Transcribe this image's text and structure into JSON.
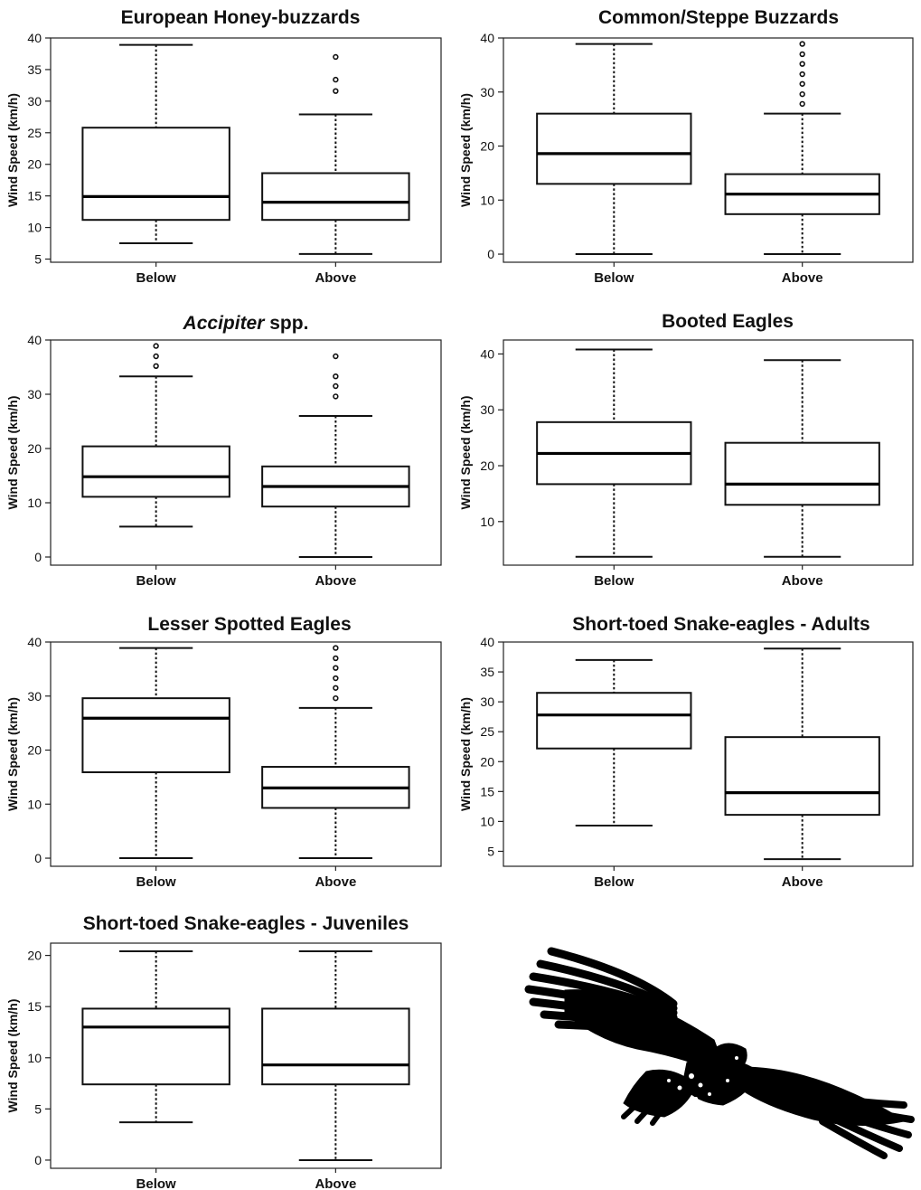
{
  "chart_data": [
    {
      "type": "box",
      "title": "European Honey-buzzards",
      "ylabel": "Wind Speed (km/h)",
      "categories": [
        "Below",
        "Above"
      ],
      "ylim": [
        4.5,
        40
      ],
      "yticks": [
        5,
        10,
        15,
        20,
        25,
        30,
        35,
        40
      ],
      "boxes": [
        {
          "category": "Below",
          "min": 7.5,
          "q1": 11.2,
          "median": 14.9,
          "q3": 25.8,
          "max": 38.9,
          "outliers": []
        },
        {
          "category": "Above",
          "min": 5.8,
          "q1": 11.2,
          "median": 14.0,
          "q3": 18.6,
          "max": 27.9,
          "outliers": [
            31.6,
            33.4,
            37.0
          ]
        }
      ]
    },
    {
      "type": "box",
      "title": "Common/Steppe Buzzards",
      "ylabel": "Wind Speed (km/h)",
      "categories": [
        "Below",
        "Above"
      ],
      "ylim": [
        -1.5,
        40
      ],
      "yticks": [
        0,
        10,
        20,
        30,
        40
      ],
      "boxes": [
        {
          "category": "Below",
          "min": 0,
          "q1": 13.0,
          "median": 18.6,
          "q3": 26.0,
          "max": 38.9,
          "outliers": []
        },
        {
          "category": "Above",
          "min": 0,
          "q1": 7.4,
          "median": 11.1,
          "q3": 14.8,
          "max": 26.0,
          "outliers": [
            27.8,
            29.6,
            31.5,
            33.3,
            35.2,
            37.0,
            38.9
          ]
        }
      ]
    },
    {
      "type": "box",
      "title_italic": "Accipiter",
      "title": " spp.",
      "ylabel": "Wind Speed (km/h)",
      "categories": [
        "Below",
        "Above"
      ],
      "ylim": [
        -1.5,
        40
      ],
      "yticks": [
        0,
        10,
        20,
        30,
        40
      ],
      "boxes": [
        {
          "category": "Below",
          "min": 5.6,
          "q1": 11.1,
          "median": 14.8,
          "q3": 20.4,
          "max": 33.3,
          "outliers": [
            35.2,
            37.0,
            38.9
          ]
        },
        {
          "category": "Above",
          "min": 0,
          "q1": 9.3,
          "median": 13.0,
          "q3": 16.7,
          "max": 26.0,
          "outliers": [
            29.6,
            31.5,
            33.3,
            37.0
          ]
        }
      ]
    },
    {
      "type": "box",
      "title": "Booted Eagles",
      "ylabel": "Wind Speed (km/h)",
      "categories": [
        "Below",
        "Above"
      ],
      "ylim": [
        2.2,
        42.5
      ],
      "yticks": [
        10,
        20,
        30,
        40
      ],
      "boxes": [
        {
          "category": "Below",
          "min": 3.7,
          "q1": 16.7,
          "median": 22.2,
          "q3": 27.8,
          "max": 40.8,
          "outliers": []
        },
        {
          "category": "Above",
          "min": 3.7,
          "q1": 13.0,
          "median": 16.7,
          "q3": 24.1,
          "max": 38.9,
          "outliers": []
        }
      ]
    },
    {
      "type": "box",
      "title": "Lesser Spotted Eagles",
      "ylabel": "Wind Speed (km/h)",
      "categories": [
        "Below",
        "Above"
      ],
      "ylim": [
        -1.5,
        40
      ],
      "yticks": [
        0,
        10,
        20,
        30,
        40
      ],
      "boxes": [
        {
          "category": "Below",
          "min": 0,
          "q1": 15.9,
          "median": 25.9,
          "q3": 29.6,
          "max": 38.9,
          "outliers": []
        },
        {
          "category": "Above",
          "min": 0,
          "q1": 9.3,
          "median": 13.0,
          "q3": 16.9,
          "max": 27.8,
          "outliers": [
            29.6,
            31.5,
            33.3,
            35.2,
            37.0,
            38.9
          ]
        }
      ]
    },
    {
      "type": "box",
      "title": "Short-toed Snake-eagles - Adults",
      "ylabel": "Wind Speed (km/h)",
      "categories": [
        "Below",
        "Above"
      ],
      "ylim": [
        2.5,
        40
      ],
      "yticks": [
        5,
        10,
        15,
        20,
        25,
        30,
        35,
        40
      ],
      "boxes": [
        {
          "category": "Below",
          "min": 9.3,
          "q1": 22.2,
          "median": 27.8,
          "q3": 31.5,
          "max": 37.0,
          "outliers": []
        },
        {
          "category": "Above",
          "min": 3.7,
          "q1": 11.1,
          "median": 14.8,
          "q3": 24.1,
          "max": 38.9,
          "outliers": []
        }
      ]
    },
    {
      "type": "box",
      "title": "Short-toed Snake-eagles - Juveniles",
      "ylabel": "Wind Speed (km/h)",
      "categories": [
        "Below",
        "Above"
      ],
      "ylim": [
        -0.8,
        21.2
      ],
      "yticks": [
        0,
        5,
        10,
        15,
        20
      ],
      "boxes": [
        {
          "category": "Below",
          "min": 3.7,
          "q1": 7.4,
          "median": 13.0,
          "q3": 14.8,
          "max": 20.4,
          "outliers": []
        },
        {
          "category": "Above",
          "min": 0,
          "q1": 7.4,
          "median": 9.3,
          "q3": 14.8,
          "max": 20.4,
          "outliers": []
        }
      ]
    }
  ],
  "illustration": {
    "icon": "soaring-eagle-silhouette-icon",
    "color": "#000000"
  }
}
